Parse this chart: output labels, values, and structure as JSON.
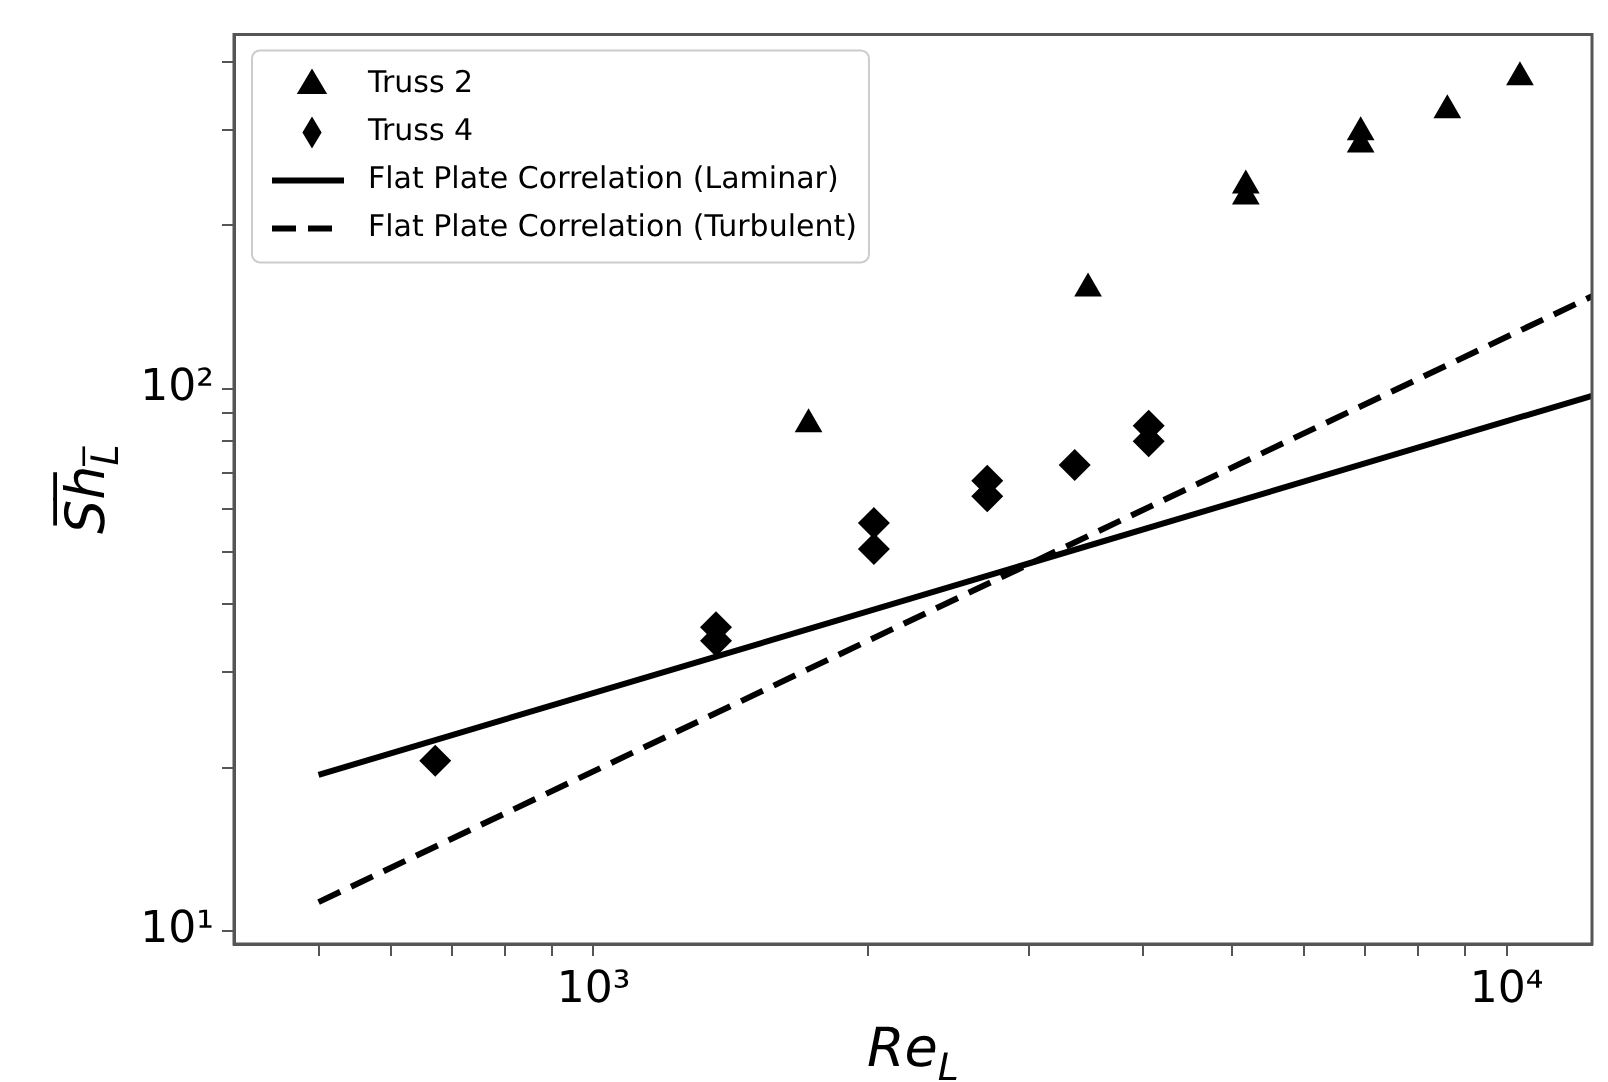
{
  "chart_data": {
    "type": "scatter",
    "xlabel": "Re$_{L}$",
    "ylabel": "S̅h̅$_{L̅}$",
    "log": "xy",
    "grid": false,
    "legend": "top left",
    "xlim": [
      404,
      12400
    ],
    "ylim": [
      9.46,
      450
    ],
    "xticks": [
      {
        "value": 500,
        "label": null
      },
      {
        "value": 600,
        "label": null
      },
      {
        "value": 700,
        "label": null
      },
      {
        "value": 800,
        "label": null
      },
      {
        "value": 900,
        "label": null
      },
      {
        "value": 1000,
        "label": "10³"
      },
      {
        "value": 2000,
        "label": null
      },
      {
        "value": 3000,
        "label": null
      },
      {
        "value": 4000,
        "label": null
      },
      {
        "value": 5000,
        "label": null
      },
      {
        "value": 6000,
        "label": null
      },
      {
        "value": 7000,
        "label": null
      },
      {
        "value": 8000,
        "label": null
      },
      {
        "value": 9000,
        "label": null
      },
      {
        "value": 10000,
        "label": "10⁴"
      }
    ],
    "yticks": [
      {
        "value": 10,
        "label": "10¹"
      },
      {
        "value": 20,
        "label": null
      },
      {
        "value": 30,
        "label": null
      },
      {
        "value": 40,
        "label": null
      },
      {
        "value": 50,
        "label": null
      },
      {
        "value": 60,
        "label": null
      },
      {
        "value": 70,
        "label": null
      },
      {
        "value": 80,
        "label": null
      },
      {
        "value": 90,
        "label": null
      },
      {
        "value": 100,
        "label": "10²"
      },
      {
        "value": 200,
        "label": null
      },
      {
        "value": 300,
        "label": null
      },
      {
        "value": 400,
        "label": null
      }
    ],
    "series": [
      {
        "name": "Truss 2",
        "type": "scatter",
        "marker": "triangle",
        "color": "#000000",
        "x": [
          1720,
          3480,
          5180,
          5180,
          6920,
          6920,
          8610,
          10340
        ],
        "values": [
          86,
          153,
          237,
          226,
          297,
          282,
          326,
          375
        ]
      },
      {
        "name": "Truss 4",
        "type": "scatter",
        "marker": "diamond",
        "color": "#000000",
        "x": [
          671,
          1362,
          1362,
          2028,
          2028,
          2699,
          2699,
          3365,
          4055,
          4055
        ],
        "values": [
          20.6,
          36.3,
          34.3,
          56.5,
          50.6,
          67.6,
          63.3,
          72.3,
          85.4,
          80.0
        ]
      },
      {
        "name": "Flat Plate Correlation (Laminar)",
        "type": "line",
        "marker": "none",
        "line_style": "solid",
        "color": "#000000",
        "x": [
          500,
          12400
        ],
        "values": [
          19.4,
          97
        ]
      },
      {
        "name": "Flat Plate Correlation (Turbulent)",
        "type": "line",
        "marker": "none",
        "line_style": "dashed",
        "color": "#000000",
        "x": [
          500,
          12400
        ],
        "values": [
          11.3,
          148
        ]
      }
    ]
  }
}
